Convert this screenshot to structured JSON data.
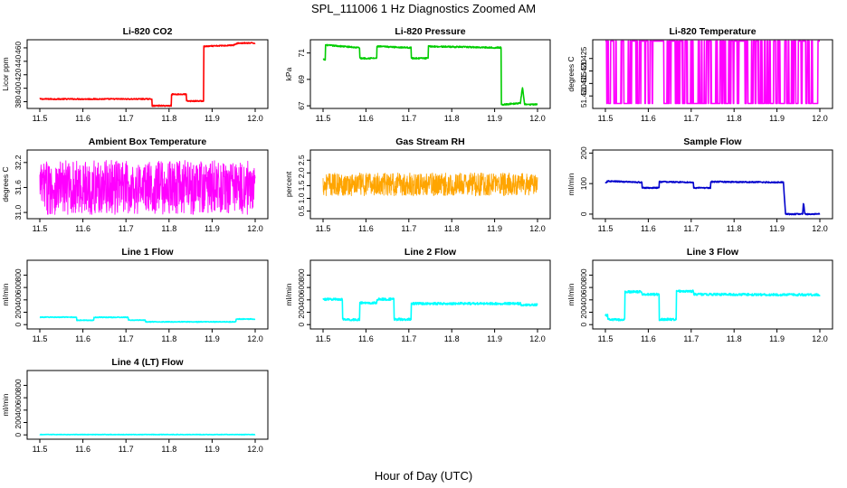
{
  "figure": {
    "title": "SPL_111006  1 Hz Diagnostics Zoomed AM",
    "xlabel": "Hour of Day (UTC)"
  },
  "chart_data": [
    {
      "type": "line",
      "title": "Li-820 CO2",
      "ylabel": "Licor ppm",
      "color": "#ff0000",
      "xlim": [
        11.5,
        12.0
      ],
      "ylim": [
        370,
        472
      ],
      "xticks": [
        "11.5",
        "11.6",
        "11.7",
        "11.8",
        "11.9",
        "12.0"
      ],
      "yticks": [
        380,
        400,
        420,
        440,
        460
      ],
      "x": [
        11.5,
        11.76,
        11.76,
        11.805,
        11.805,
        11.84,
        11.84,
        11.88,
        11.88,
        11.95,
        11.96,
        12.0
      ],
      "y": [
        384,
        384,
        374,
        374,
        391,
        391,
        381,
        381,
        462,
        464,
        467,
        467
      ],
      "noise": 0.8
    },
    {
      "type": "line",
      "title": "Li-820 Pressure",
      "ylabel": "kPa",
      "color": "#00cc00",
      "xlim": [
        11.5,
        12.0
      ],
      "ylim": [
        66.8,
        72.0
      ],
      "xticks": [
        "11.5",
        "11.6",
        "11.7",
        "11.8",
        "11.9",
        "12.0"
      ],
      "yticks": [
        67,
        69,
        71
      ],
      "x": [
        11.5,
        11.505,
        11.505,
        11.585,
        11.585,
        11.625,
        11.625,
        11.705,
        11.705,
        11.745,
        11.745,
        11.915,
        11.915,
        11.92,
        11.96,
        11.965,
        11.97,
        12.0
      ],
      "y": [
        70.5,
        70.5,
        71.6,
        71.4,
        70.6,
        70.6,
        71.5,
        71.4,
        70.6,
        70.6,
        71.5,
        71.4,
        67.1,
        67.1,
        67.2,
        68.4,
        67.1,
        67.1
      ],
      "noise": 0.05
    },
    {
      "type": "line",
      "title": "Li-820 Temperature",
      "ylabel": "degrees C",
      "color": "#ff00ff",
      "xlim": [
        11.5,
        12.0
      ],
      "ylim": [
        51.405,
        51.4325
      ],
      "xticks": [
        "11.5",
        "11.6",
        "11.7",
        "11.8",
        "11.9",
        "12.0"
      ],
      "yticks": [
        "51.410",
        "51.415",
        "51.420",
        "51.425"
      ],
      "ytick_values": [
        51.41,
        51.415,
        51.42,
        51.425
      ],
      "x": [
        11.5,
        12.0
      ],
      "y": [
        51.432,
        51.407
      ],
      "style": "switching",
      "noise": 0
    },
    {
      "type": "line",
      "title": "Ambient Box Temperature",
      "ylabel": "degrees C",
      "color": "#ff00ff",
      "xlim": [
        11.5,
        12.0
      ],
      "ylim": [
        30.85,
        32.5
      ],
      "xticks": [
        "11.5",
        "11.6",
        "11.7",
        "11.8",
        "11.9",
        "12.0"
      ],
      "yticks": [
        "31.0",
        "31.6",
        "32.2"
      ],
      "ytick_values": [
        31.0,
        31.6,
        32.2
      ],
      "x": [
        11.5,
        12.0
      ],
      "y": [
        31.6,
        31.6
      ],
      "style": "noisy",
      "noise": 0.65
    },
    {
      "type": "line",
      "title": "Gas Stream RH",
      "ylabel": "percent",
      "color": "#ffa500",
      "xlim": [
        11.5,
        12.0
      ],
      "ylim": [
        0.2,
        2.9
      ],
      "xticks": [
        "11.5",
        "11.6",
        "11.7",
        "11.8",
        "11.9",
        "12.0"
      ],
      "yticks": [
        "0.5",
        "1.0",
        "1.5",
        "2.0",
        "2.5"
      ],
      "ytick_values": [
        0.5,
        1.0,
        1.5,
        2.0,
        2.5
      ],
      "x": [
        11.5,
        12.0
      ],
      "y": [
        1.55,
        1.55
      ],
      "style": "noisy",
      "noise": 0.45
    },
    {
      "type": "line",
      "title": "Sample Flow",
      "ylabel": "ml/min",
      "color": "#0000cc",
      "xlim": [
        11.5,
        12.0
      ],
      "ylim": [
        -15,
        210
      ],
      "xticks": [
        "11.5",
        "11.6",
        "11.7",
        "11.8",
        "11.9",
        "12.0"
      ],
      "yticks": [
        0,
        100,
        200
      ],
      "x": [
        11.5,
        11.505,
        11.585,
        11.585,
        11.625,
        11.625,
        11.705,
        11.705,
        11.745,
        11.745,
        11.915,
        11.92,
        11.96,
        11.962,
        11.965,
        12.0
      ],
      "y": [
        100,
        108,
        104,
        86,
        86,
        106,
        104,
        86,
        86,
        106,
        104,
        0,
        0,
        40,
        0,
        0
      ],
      "noise": 2
    },
    {
      "type": "line",
      "title": "Line 1 Flow",
      "ylabel": "ml/min",
      "color": "#00ffff",
      "xlim": [
        11.5,
        12.0
      ],
      "ylim": [
        -70,
        1040
      ],
      "xticks": [
        "11.5",
        "11.6",
        "11.7",
        "11.8",
        "11.9",
        "12.0"
      ],
      "yticks": [
        0,
        200,
        400,
        600,
        800
      ],
      "x": [
        11.5,
        11.585,
        11.585,
        11.625,
        11.625,
        11.705,
        11.705,
        11.745,
        11.745,
        11.955,
        11.955,
        12.0
      ],
      "y": [
        120,
        120,
        70,
        70,
        118,
        118,
        72,
        72,
        45,
        45,
        90,
        90
      ],
      "noise": 6
    },
    {
      "type": "line",
      "title": "Line 2 Flow",
      "ylabel": "ml/min",
      "color": "#00ffff",
      "xlim": [
        11.5,
        12.0
      ],
      "ylim": [
        -70,
        1040
      ],
      "xticks": [
        "11.5",
        "11.6",
        "11.7",
        "11.8",
        "11.9",
        "12.0"
      ],
      "yticks": [
        0,
        200,
        400,
        600,
        800
      ],
      "x": [
        11.5,
        11.545,
        11.545,
        11.585,
        11.585,
        11.625,
        11.625,
        11.665,
        11.665,
        11.705,
        11.705,
        11.96,
        11.96,
        12.0
      ],
      "y": [
        410,
        410,
        80,
        80,
        350,
        350,
        410,
        410,
        85,
        85,
        340,
        340,
        320,
        320
      ],
      "noise": 18
    },
    {
      "type": "line",
      "title": "Line 3 Flow",
      "ylabel": "ml/min",
      "color": "#00ffff",
      "xlim": [
        11.5,
        12.0
      ],
      "ylim": [
        -70,
        1040
      ],
      "xticks": [
        "11.5",
        "11.6",
        "11.7",
        "11.8",
        "11.9",
        "12.0"
      ],
      "yticks": [
        0,
        200,
        400,
        600,
        800
      ],
      "x": [
        11.5,
        11.505,
        11.505,
        11.545,
        11.545,
        11.585,
        11.585,
        11.625,
        11.625,
        11.665,
        11.665,
        11.705,
        11.705,
        11.995,
        12.0
      ],
      "y": [
        150,
        150,
        80,
        80,
        530,
        530,
        490,
        490,
        85,
        85,
        540,
        540,
        490,
        480,
        470
      ],
      "noise": 18
    },
    {
      "type": "line",
      "title": "Line 4 (LT) Flow",
      "ylabel": "ml/min",
      "color": "#00ffff",
      "xlim": [
        11.5,
        12.0
      ],
      "ylim": [
        -70,
        1040
      ],
      "xticks": [
        "11.5",
        "11.6",
        "11.7",
        "11.8",
        "11.9",
        "12.0"
      ],
      "yticks": [
        0,
        200,
        400,
        600,
        800
      ],
      "x": [
        11.5,
        12.0
      ],
      "y": [
        5,
        5
      ],
      "noise": 4
    }
  ]
}
